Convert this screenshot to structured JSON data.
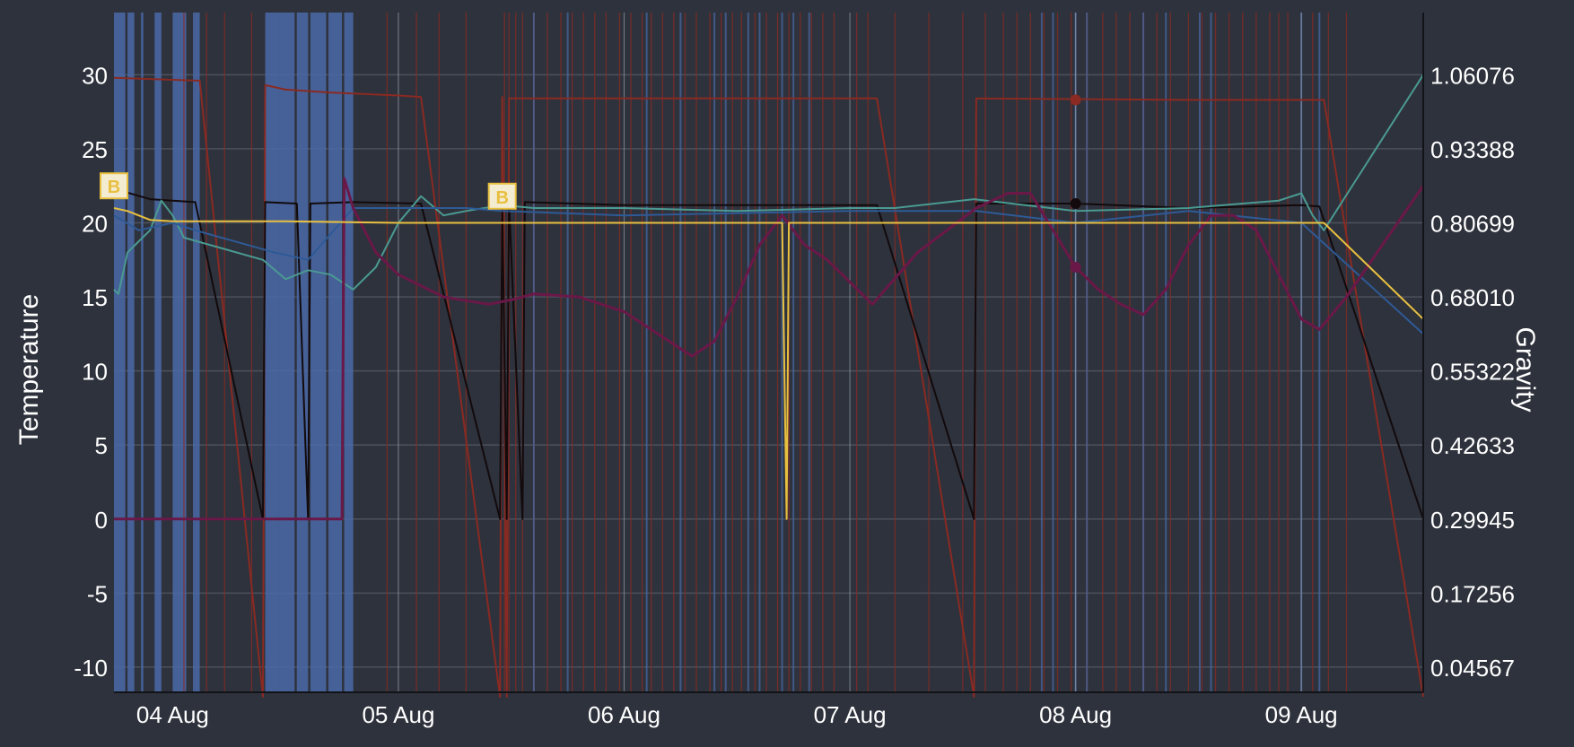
{
  "chart_data": {
    "type": "line",
    "title": "",
    "y_left": {
      "label": "Temperature",
      "range": [
        -11.7,
        34.2
      ],
      "ticks": [
        "30",
        "25",
        "20",
        "15",
        "10",
        "5",
        "0",
        "-5",
        "-10"
      ],
      "tick_values": [
        30,
        25,
        20,
        15,
        10,
        5,
        0,
        -5,
        -10
      ]
    },
    "y_right": {
      "label": "Gravity",
      "ticks": [
        "1.06076",
        "0.93388",
        "0.80699",
        "0.68010",
        "0.55322",
        "0.42633",
        "0.29945",
        "0.17256",
        "0.04567"
      ],
      "tick_values": [
        1.06076,
        0.93388,
        0.80699,
        0.6801,
        0.55322,
        0.42633,
        0.29945,
        0.17256,
        0.04567
      ]
    },
    "x_axis": {
      "range_days": [
        3.74,
        9.54
      ],
      "ticks": [
        "04 Aug",
        "05 Aug",
        "06 Aug",
        "07 Aug",
        "08 Aug",
        "09 Aug"
      ],
      "tick_values": [
        4,
        5,
        6,
        7,
        8,
        9
      ]
    },
    "grid": true,
    "markers": [
      {
        "label": "B",
        "x": 3.74,
        "y": 22.5
      },
      {
        "label": "B",
        "x": 5.46,
        "y": 21.8
      }
    ],
    "colors": {
      "background": "#2e323c",
      "grid": "#4c515c",
      "blue_band": "#4a6aa8",
      "red_lines": "#8a2a22",
      "black_line": "#120a0c",
      "teal": "#4a9a92",
      "blue_series": "#2e5a96",
      "purple": "#6a1848",
      "yellow": "#e8c040",
      "marker_border": "#e8c040",
      "marker_fill": "#f4ecd0",
      "text": "#ffffff"
    },
    "blue_bands": [
      [
        3.74,
        3.79
      ],
      [
        3.8,
        3.83
      ],
      [
        3.86,
        3.87
      ],
      [
        3.92,
        3.95
      ],
      [
        4.0,
        4.06
      ],
      [
        4.09,
        4.1
      ],
      [
        4.1,
        4.12
      ],
      [
        4.41,
        4.47
      ],
      [
        4.47,
        4.54
      ],
      [
        4.55,
        4.6
      ],
      [
        4.61,
        4.68
      ],
      [
        4.69,
        4.75
      ],
      [
        4.76,
        4.8
      ]
    ],
    "red_vertical_lines": [
      4.05,
      4.15,
      4.23,
      4.35,
      4.95,
      5.08,
      5.18,
      5.3,
      5.47,
      5.49,
      5.52,
      5.55,
      5.6,
      5.66,
      5.72,
      5.77,
      5.82,
      5.87,
      5.92,
      5.98,
      6.03,
      6.08,
      6.12,
      6.17,
      6.22,
      6.27,
      6.32,
      6.38,
      6.43,
      6.48,
      6.52,
      6.58,
      6.63,
      6.68,
      6.73,
      6.78,
      6.83,
      6.88,
      6.93,
      7.03,
      7.08,
      7.2,
      7.35,
      7.5,
      7.6,
      7.68,
      7.74,
      7.8,
      7.86,
      7.92,
      7.98,
      8.05,
      8.12,
      8.18,
      8.24,
      8.3,
      8.36,
      8.42,
      8.5,
      8.56,
      8.62,
      8.68,
      8.74,
      8.8,
      8.86,
      8.9,
      8.94,
      9.05,
      9.12,
      9.2
    ],
    "thin_blue_vertical_lines": [
      5.6,
      5.75,
      6.1,
      6.25,
      6.4,
      6.45,
      6.55,
      6.6,
      6.7,
      6.75,
      6.82,
      7.85,
      7.9,
      8.0,
      8.05,
      8.3,
      8.4,
      8.55,
      8.6,
      9.0,
      9.08
    ],
    "white_vertical_lines": [
      5.0,
      6.0,
      7.0,
      8.0,
      9.0
    ],
    "series": [
      {
        "color_key": "red_lines",
        "axis": "left",
        "points": [
          [
            3.74,
            29.8
          ],
          [
            4.12,
            29.6
          ],
          [
            4.4,
            -12
          ],
          [
            4.41,
            29.3
          ],
          [
            4.5,
            29.0
          ],
          [
            4.7,
            28.8
          ],
          [
            5.0,
            28.6
          ],
          [
            5.1,
            28.5
          ],
          [
            5.45,
            -12
          ],
          [
            5.46,
            28.5
          ],
          [
            5.48,
            -12
          ],
          [
            5.49,
            28.4
          ],
          [
            6.0,
            28.4
          ],
          [
            7.12,
            28.4
          ],
          [
            7.55,
            -12
          ],
          [
            7.56,
            28.4
          ],
          [
            8.5,
            28.3
          ],
          [
            9.1,
            28.3
          ],
          [
            9.54,
            -12
          ]
        ]
      },
      {
        "color_key": "black_line",
        "axis": "left",
        "points": [
          [
            3.74,
            22.3
          ],
          [
            3.9,
            21.6
          ],
          [
            4.1,
            21.4
          ],
          [
            4.4,
            0
          ],
          [
            4.41,
            21.4
          ],
          [
            4.55,
            21.3
          ],
          [
            4.6,
            0
          ],
          [
            4.61,
            21.3
          ],
          [
            4.8,
            21.4
          ],
          [
            5.1,
            21.3
          ],
          [
            5.45,
            0
          ],
          [
            5.46,
            21.6
          ],
          [
            5.48,
            0
          ],
          [
            5.49,
            21.5
          ],
          [
            5.55,
            0
          ],
          [
            5.56,
            21.4
          ],
          [
            6.0,
            21.2
          ],
          [
            6.5,
            21.2
          ],
          [
            7.0,
            21.2
          ],
          [
            7.12,
            21.2
          ],
          [
            7.55,
            0
          ],
          [
            7.56,
            21.3
          ],
          [
            8.0,
            21.3
          ],
          [
            8.5,
            21.0
          ],
          [
            9.0,
            21.2
          ],
          [
            9.08,
            21.1
          ],
          [
            9.54,
            0
          ]
        ]
      },
      {
        "color_key": "teal",
        "axis": "left",
        "points": [
          [
            3.74,
            15.5
          ],
          [
            3.76,
            15.2
          ],
          [
            3.8,
            18.0
          ],
          [
            3.9,
            19.5
          ],
          [
            3.95,
            21.5
          ],
          [
            4.0,
            20.5
          ],
          [
            4.05,
            19.0
          ],
          [
            4.4,
            17.5
          ],
          [
            4.5,
            16.2
          ],
          [
            4.6,
            16.8
          ],
          [
            4.7,
            16.5
          ],
          [
            4.8,
            15.5
          ],
          [
            4.9,
            17.0
          ],
          [
            5.0,
            20.0
          ],
          [
            5.1,
            21.8
          ],
          [
            5.2,
            20.5
          ],
          [
            5.3,
            20.8
          ],
          [
            5.46,
            21.2
          ],
          [
            5.6,
            21.0
          ],
          [
            6.0,
            21.0
          ],
          [
            6.5,
            20.8
          ],
          [
            7.0,
            21.0
          ],
          [
            7.2,
            21.0
          ],
          [
            7.55,
            21.6
          ],
          [
            8.0,
            20.8
          ],
          [
            8.5,
            21.0
          ],
          [
            8.9,
            21.5
          ],
          [
            9.0,
            22.0
          ],
          [
            9.05,
            20.5
          ],
          [
            9.1,
            19.5
          ],
          [
            9.54,
            30.0
          ]
        ]
      },
      {
        "color_key": "blue_series",
        "axis": "left",
        "points": [
          [
            3.74,
            20.5
          ],
          [
            3.85,
            19.5
          ],
          [
            4.0,
            20.0
          ],
          [
            4.1,
            19.5
          ],
          [
            4.45,
            18.0
          ],
          [
            4.6,
            17.5
          ],
          [
            4.8,
            21.0
          ],
          [
            5.0,
            21.0
          ],
          [
            5.3,
            21.0
          ],
          [
            5.46,
            20.8
          ],
          [
            6.0,
            20.5
          ],
          [
            7.0,
            20.8
          ],
          [
            7.56,
            20.8
          ],
          [
            8.0,
            20.0
          ],
          [
            8.5,
            20.8
          ],
          [
            9.0,
            20.0
          ],
          [
            9.54,
            12.5
          ]
        ]
      },
      {
        "color_key": "purple",
        "axis": "left",
        "points": [
          [
            3.74,
            0
          ],
          [
            4.4,
            0
          ],
          [
            4.75,
            0
          ],
          [
            4.76,
            23.0
          ],
          [
            4.8,
            21.0
          ],
          [
            4.9,
            18.0
          ],
          [
            5.0,
            16.5
          ],
          [
            5.2,
            15.0
          ],
          [
            5.4,
            14.5
          ],
          [
            5.5,
            14.8
          ],
          [
            5.6,
            15.2
          ],
          [
            5.8,
            15.0
          ],
          [
            6.0,
            14.0
          ],
          [
            6.2,
            12.0
          ],
          [
            6.3,
            11.0
          ],
          [
            6.4,
            12.0
          ],
          [
            6.5,
            15.0
          ],
          [
            6.6,
            18.5
          ],
          [
            6.7,
            20.5
          ],
          [
            6.8,
            18.5
          ],
          [
            6.9,
            17.5
          ],
          [
            7.0,
            16.0
          ],
          [
            7.1,
            14.5
          ],
          [
            7.3,
            18.0
          ],
          [
            7.56,
            21.0
          ],
          [
            7.7,
            22.0
          ],
          [
            7.8,
            22.0
          ],
          [
            7.9,
            19.5
          ],
          [
            8.0,
            17.0
          ],
          [
            8.1,
            15.5
          ],
          [
            8.2,
            14.5
          ],
          [
            8.3,
            13.8
          ],
          [
            8.4,
            15.5
          ],
          [
            8.5,
            18.5
          ],
          [
            8.6,
            20.5
          ],
          [
            8.7,
            20.5
          ],
          [
            8.8,
            19.5
          ],
          [
            8.9,
            16.5
          ],
          [
            9.0,
            13.5
          ],
          [
            9.08,
            12.8
          ],
          [
            9.2,
            15.0
          ],
          [
            9.54,
            22.5
          ]
        ]
      },
      {
        "color_key": "yellow",
        "axis": "left",
        "points": [
          [
            3.74,
            21.0
          ],
          [
            3.8,
            20.8
          ],
          [
            3.9,
            20.2
          ],
          [
            4.0,
            20.1
          ],
          [
            4.5,
            20.1
          ],
          [
            5.0,
            20.0
          ],
          [
            5.5,
            20.0
          ],
          [
            6.0,
            20.0
          ],
          [
            6.7,
            20.0
          ],
          [
            6.72,
            0
          ],
          [
            6.73,
            20.0
          ],
          [
            7.0,
            20.0
          ],
          [
            7.56,
            20.0
          ],
          [
            8.0,
            20.0
          ],
          [
            9.0,
            20.0
          ],
          [
            9.1,
            20.0
          ],
          [
            9.54,
            13.5
          ]
        ]
      }
    ],
    "point_markers": [
      {
        "x": 8.0,
        "y": 28.3,
        "color_key": "red_lines"
      },
      {
        "x": 8.0,
        "y": 21.3,
        "color_key": "black_line"
      },
      {
        "x": 8.0,
        "y": 17.0,
        "color_key": "purple"
      }
    ]
  }
}
